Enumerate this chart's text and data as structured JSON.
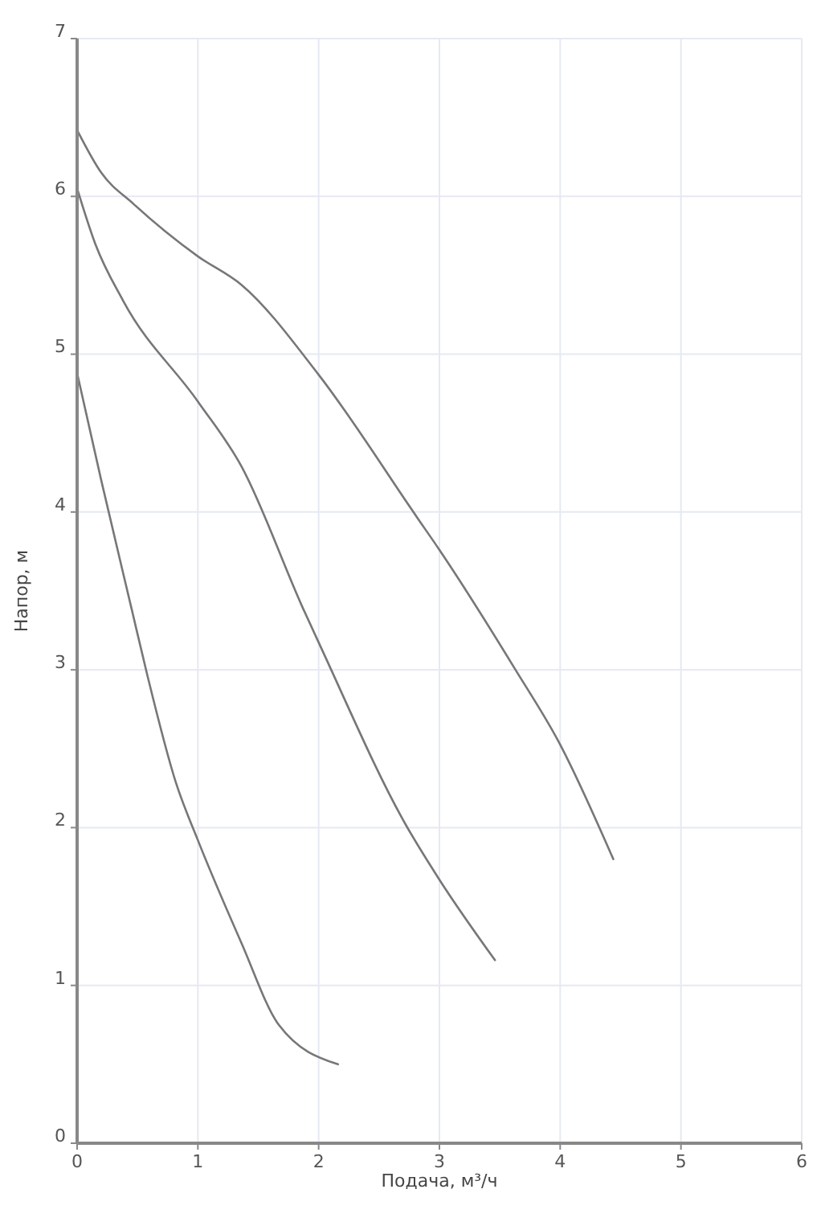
{
  "chart_data": {
    "type": "line",
    "xlabel": "Подача, м³/ч",
    "ylabel": "Напор, м",
    "xlim": [
      0,
      6
    ],
    "ylim": [
      0,
      7
    ],
    "xticks": [
      0,
      1,
      2,
      3,
      4,
      5,
      6
    ],
    "yticks": [
      0,
      1,
      2,
      3,
      4,
      5,
      6,
      7
    ],
    "grid": true,
    "marker": "none",
    "line_style": "solid",
    "series": [
      {
        "color": "#777777",
        "x": [
          0,
          0.2,
          0.47,
          1.0,
          1.36,
          2.0,
          2.82,
          3.0,
          3.63,
          3.99,
          4.44
        ],
        "values": [
          6.42,
          6.15,
          5.95,
          5.62,
          5.44,
          4.87,
          3.96,
          3.76,
          3.0,
          2.54,
          1.8
        ]
      },
      {
        "color": "#777777",
        "x": [
          0,
          0.15,
          0.38,
          1.0,
          1.36,
          1.87,
          2.02,
          2.72,
          3.0,
          3.46
        ],
        "values": [
          6.05,
          5.7,
          5.34,
          4.7,
          4.29,
          3.39,
          3.14,
          2.02,
          1.67,
          1.16
        ]
      },
      {
        "color": "#777777",
        "x": [
          0,
          0.2,
          0.45,
          0.58,
          0.82,
          1.0,
          1.36,
          1.67,
          2.16
        ],
        "values": [
          4.88,
          4.2,
          3.39,
          2.97,
          2.28,
          1.92,
          1.27,
          0.75,
          0.5
        ]
      }
    ]
  }
}
